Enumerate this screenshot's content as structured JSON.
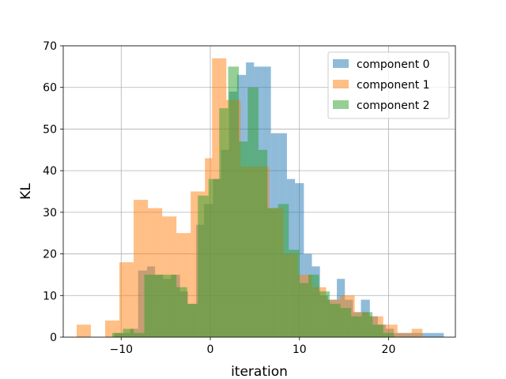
{
  "chart_data": {
    "type": "bar",
    "subtype": "overlapping-histogram",
    "title": "",
    "xlabel": "iteration",
    "ylabel": "KL",
    "xlim": [
      -16.5,
      27.5
    ],
    "ylim": [
      0,
      70
    ],
    "xticks": [
      -10,
      0,
      10,
      20
    ],
    "yticks": [
      0,
      10,
      20,
      30,
      40,
      50,
      60,
      70
    ],
    "grid": true,
    "legend_position": "top-right",
    "alpha": 0.5,
    "series": [
      {
        "name": "component 0",
        "color": "#1f77b4",
        "bins": [
          [
            -10.8,
            -9.9,
            1
          ],
          [
            -9.9,
            -9.0,
            1
          ],
          [
            -9.0,
            -8.1,
            2
          ],
          [
            -8.1,
            -7.1,
            16
          ],
          [
            -7.1,
            -6.2,
            17
          ],
          [
            -6.2,
            -5.3,
            15
          ],
          [
            -5.3,
            -4.4,
            14
          ],
          [
            -4.4,
            -3.4,
            15
          ],
          [
            -3.4,
            -2.5,
            11
          ],
          [
            -2.5,
            -1.6,
            8
          ],
          [
            -1.6,
            -0.7,
            27
          ],
          [
            -0.7,
            0.3,
            32
          ],
          [
            0.3,
            1.2,
            38
          ],
          [
            1.2,
            2.1,
            45
          ],
          [
            2.1,
            3.0,
            59
          ],
          [
            3.0,
            4.0,
            63
          ],
          [
            4.0,
            4.9,
            66
          ],
          [
            4.9,
            5.8,
            65
          ],
          [
            5.8,
            6.8,
            65
          ],
          [
            6.8,
            7.7,
            49
          ],
          [
            7.7,
            8.6,
            49
          ],
          [
            8.6,
            9.5,
            38
          ],
          [
            9.5,
            10.5,
            37
          ],
          [
            10.5,
            11.4,
            20
          ],
          [
            11.4,
            12.3,
            17
          ],
          [
            12.3,
            13.2,
            10
          ],
          [
            13.2,
            14.2,
            9
          ],
          [
            14.2,
            15.1,
            14
          ],
          [
            15.1,
            16.0,
            9
          ],
          [
            16.0,
            16.9,
            6
          ],
          [
            16.9,
            17.9,
            9
          ],
          [
            17.9,
            18.8,
            5
          ],
          [
            18.8,
            19.7,
            3
          ],
          [
            19.7,
            20.6,
            2
          ],
          [
            20.6,
            21.6,
            1
          ],
          [
            21.6,
            22.5,
            1
          ],
          [
            22.5,
            23.4,
            1
          ],
          [
            23.4,
            24.3,
            1
          ],
          [
            24.3,
            25.3,
            1
          ],
          [
            25.3,
            26.2,
            1
          ]
        ]
      },
      {
        "name": "component 1",
        "color": "#ff7f0e",
        "bins": [
          [
            -15.0,
            -13.4,
            3
          ],
          [
            -13.4,
            -11.8,
            0
          ],
          [
            -11.8,
            -10.2,
            4
          ],
          [
            -10.2,
            -8.6,
            18
          ],
          [
            -8.6,
            -7.0,
            33
          ],
          [
            -7.0,
            -5.4,
            31
          ],
          [
            -5.4,
            -3.8,
            29
          ],
          [
            -3.8,
            -2.2,
            25
          ],
          [
            -2.2,
            -0.6,
            35
          ],
          [
            -0.6,
            0.2,
            43
          ],
          [
            0.2,
            1.8,
            67
          ],
          [
            1.8,
            3.4,
            57
          ],
          [
            3.4,
            5.0,
            41
          ],
          [
            5.0,
            6.6,
            41
          ],
          [
            6.6,
            8.2,
            31
          ],
          [
            8.2,
            9.8,
            20
          ],
          [
            9.8,
            11.4,
            15
          ],
          [
            11.4,
            13.0,
            12
          ],
          [
            13.0,
            14.6,
            9
          ],
          [
            14.6,
            16.2,
            10
          ],
          [
            16.2,
            17.8,
            6
          ],
          [
            17.8,
            19.4,
            5
          ],
          [
            19.4,
            21.0,
            3
          ],
          [
            21.0,
            22.6,
            1
          ],
          [
            22.6,
            23.8,
            2
          ]
        ]
      },
      {
        "name": "component 2",
        "color": "#2ca02c",
        "bins": [
          [
            -11.0,
            -9.8,
            1
          ],
          [
            -9.8,
            -8.6,
            2
          ],
          [
            -8.6,
            -7.4,
            1
          ],
          [
            -7.4,
            -6.2,
            15
          ],
          [
            -6.2,
            -5.0,
            15
          ],
          [
            -5.0,
            -3.8,
            15
          ],
          [
            -3.8,
            -2.6,
            12
          ],
          [
            -2.6,
            -1.4,
            8
          ],
          [
            -1.4,
            -0.2,
            34
          ],
          [
            -0.2,
            1.0,
            38
          ],
          [
            1.0,
            2.0,
            55
          ],
          [
            2.0,
            3.2,
            65
          ],
          [
            3.2,
            4.2,
            47
          ],
          [
            4.2,
            5.4,
            60
          ],
          [
            5.4,
            6.4,
            45
          ],
          [
            6.4,
            7.6,
            31
          ],
          [
            7.6,
            8.8,
            32
          ],
          [
            8.8,
            10.0,
            21
          ],
          [
            10.0,
            11.0,
            13
          ],
          [
            11.0,
            12.2,
            15
          ],
          [
            12.2,
            13.4,
            11
          ],
          [
            13.4,
            14.6,
            8
          ],
          [
            14.6,
            15.8,
            7
          ],
          [
            15.8,
            17.0,
            5
          ],
          [
            17.0,
            18.2,
            6
          ],
          [
            18.2,
            19.4,
            3
          ],
          [
            19.4,
            20.6,
            1
          ]
        ]
      }
    ]
  }
}
